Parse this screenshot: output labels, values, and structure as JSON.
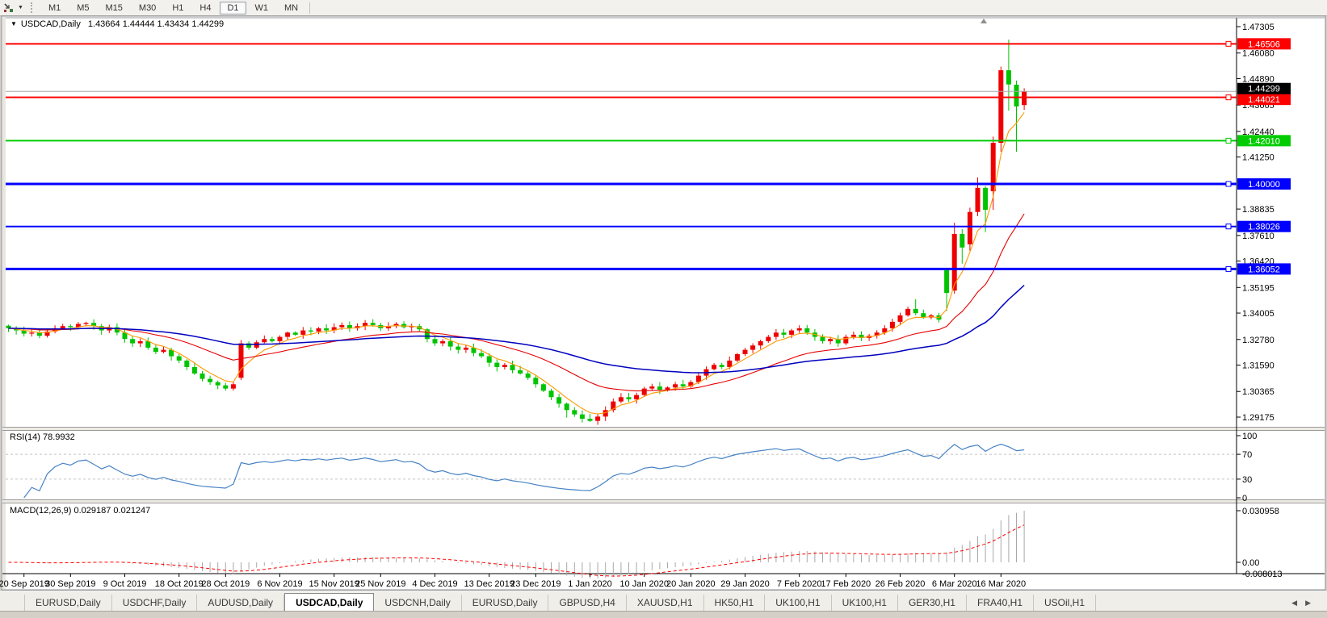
{
  "window": {
    "toolbar": {
      "timeframes": [
        "M1",
        "M5",
        "M15",
        "M30",
        "H1",
        "H4",
        "D1",
        "W1",
        "MN"
      ],
      "active": "D1"
    },
    "tabs": {
      "items": [
        "EURUSD,Daily",
        "USDCHF,Daily",
        "AUDUSD,Daily",
        "USDCAD,Daily",
        "USDCNH,Daily",
        "EURUSD,Daily",
        "GBPUSD,H4",
        "XAUUSD,H1",
        "HK50,H1",
        "UK100,H1",
        "UK100,H1",
        "GER30,H1",
        "FRA40,H1",
        "USOil,H1"
      ],
      "active_index": 3,
      "nav_left": "◀",
      "nav_right": "▶"
    }
  },
  "chart_title": {
    "caret": "▼",
    "symbol": "USDCAD,Daily",
    "ohlc": "1.43664 1.44444 1.43434 1.44299"
  },
  "chart_data": {
    "type": "candlestick",
    "symbol": "USDCAD",
    "timeframe": "Daily",
    "current_bar": {
      "open": 1.43664,
      "high": 1.44444,
      "low": 1.43434,
      "close": 1.44299
    },
    "ylim": [
      1.29175,
      1.47305
    ],
    "y_ticks": [
      "1.47305",
      "1.46080",
      "1.44890",
      "1.43665",
      "1.42440",
      "1.41250",
      "1.38835",
      "1.37610",
      "1.36420",
      "1.35195",
      "1.34005",
      "1.32780",
      "1.31590",
      "1.30365",
      "1.29175"
    ],
    "x_labels": [
      {
        "text": "20 Sep 2019",
        "bar": 2
      },
      {
        "text": "30 Sep 2019",
        "bar": 8
      },
      {
        "text": "9 Oct 2019",
        "bar": 15
      },
      {
        "text": "18 Oct 2019",
        "bar": 22
      },
      {
        "text": "28 Oct 2019",
        "bar": 28
      },
      {
        "text": "6 Nov 2019",
        "bar": 35
      },
      {
        "text": "15 Nov 2019",
        "bar": 42
      },
      {
        "text": "25 Nov 2019",
        "bar": 48
      },
      {
        "text": "4 Dec 2019",
        "bar": 55
      },
      {
        "text": "13 Dec 2019",
        "bar": 62
      },
      {
        "text": "23 Dec 2019",
        "bar": 68
      },
      {
        "text": "1 Jan 2020",
        "bar": 75
      },
      {
        "text": "10 Jan 2020",
        "bar": 82
      },
      {
        "text": "20 Jan 2020",
        "bar": 88
      },
      {
        "text": "29 Jan 2020",
        "bar": 95
      },
      {
        "text": "7 Feb 2020",
        "bar": 102
      },
      {
        "text": "17 Feb 2020",
        "bar": 108
      },
      {
        "text": "26 Feb 2020",
        "bar": 115
      },
      {
        "text": "6 Mar 2020",
        "bar": 122
      },
      {
        "text": "16 Mar 2020",
        "bar": 128
      }
    ],
    "closes": [
      1.333,
      1.332,
      1.3305,
      1.331,
      1.3295,
      1.3315,
      1.333,
      1.334,
      1.3335,
      1.335,
      1.3355,
      1.334,
      1.332,
      1.3335,
      1.331,
      1.328,
      1.326,
      1.327,
      1.324,
      1.322,
      1.323,
      1.32,
      1.318,
      1.315,
      1.312,
      1.3095,
      1.308,
      1.3065,
      1.305,
      1.307,
      1.326,
      1.324,
      1.3265,
      1.328,
      1.327,
      1.329,
      1.331,
      1.33,
      1.332,
      1.3315,
      1.333,
      1.332,
      1.3335,
      1.3345,
      1.333,
      1.334,
      1.3355,
      1.3345,
      1.333,
      1.334,
      1.335,
      1.3335,
      1.334,
      1.3325,
      1.328,
      1.326,
      1.327,
      1.3245,
      1.323,
      1.324,
      1.3215,
      1.32,
      1.317,
      1.315,
      1.316,
      1.3135,
      1.312,
      1.31,
      1.307,
      1.304,
      1.301,
      1.298,
      1.295,
      1.293,
      1.291,
      1.29,
      1.292,
      1.295,
      1.299,
      1.301,
      1.3,
      1.302,
      1.305,
      1.306,
      1.3045,
      1.3055,
      1.307,
      1.306,
      1.308,
      1.311,
      1.314,
      1.316,
      1.315,
      1.318,
      1.321,
      1.323,
      1.325,
      1.327,
      1.329,
      1.331,
      1.33,
      1.332,
      1.333,
      1.331,
      1.329,
      1.327,
      1.328,
      1.326,
      1.329,
      1.33,
      1.3285,
      1.3295,
      1.331,
      1.333,
      1.336,
      1.339,
      1.342,
      1.34,
      1.338,
      1.339,
      1.337,
      1.3494,
      1.3768,
      1.3705,
      1.387,
      1.3982,
      1.388,
      1.4191,
      1.4528,
      1.4462,
      1.436,
      1.44299
    ],
    "key_bars": {
      "30": [
        1.31,
        1.3275,
        1.309,
        1.326
      ],
      "54": [
        1.3325,
        1.333,
        1.3265,
        1.328
      ],
      "72": [
        1.298,
        1.2985,
        1.2915,
        1.295
      ],
      "75": [
        1.291,
        1.2932,
        1.2895,
        1.29
      ],
      "117": [
        1.342,
        1.3465,
        1.339,
        1.34
      ],
      "121": [
        1.3599,
        1.361,
        1.341,
        1.3494
      ],
      "122": [
        1.3505,
        1.382,
        1.349,
        1.3768
      ],
      "123": [
        1.3768,
        1.379,
        1.363,
        1.3705
      ],
      "124": [
        1.372,
        1.389,
        1.369,
        1.387
      ],
      "125": [
        1.387,
        1.403,
        1.385,
        1.3982
      ],
      "126": [
        1.3982,
        1.399,
        1.3776,
        1.388
      ],
      "127": [
        1.3966,
        1.422,
        1.388,
        1.4191
      ],
      "128": [
        1.4191,
        1.4545,
        1.415,
        1.4528
      ],
      "129": [
        1.4528,
        1.467,
        1.434,
        1.4462
      ],
      "130": [
        1.4461,
        1.448,
        1.415,
        1.436
      ],
      "131": [
        1.43664,
        1.44444,
        1.43434,
        1.44299
      ]
    },
    "hlines": [
      {
        "price": 1.46506,
        "label": "1.46506",
        "color": "#FF0000",
        "width": 2
      },
      {
        "price": 1.44021,
        "label": "1.44021",
        "color": "#FF0000",
        "width": 2
      },
      {
        "price": 1.4201,
        "label": "1.42010",
        "color": "#00CC00",
        "width": 2
      },
      {
        "price": 1.4,
        "label": "1.40000",
        "color": "#0000FF",
        "width": 3
      },
      {
        "price": 1.38026,
        "label": "1.38026",
        "color": "#0000FF",
        "width": 2
      },
      {
        "price": 1.36052,
        "label": "1.36052",
        "color": "#0000FF",
        "width": 3
      }
    ],
    "bid_line": {
      "price": 1.44299,
      "label": "1.44299",
      "line_color": "#AAAAAA",
      "badge_color": "#000000"
    },
    "ma_lines": [
      {
        "name": "fast",
        "period": 5,
        "color": "#FF9900"
      },
      {
        "name": "mid",
        "period": 21,
        "color": "#E60000"
      },
      {
        "name": "slow",
        "period": 55,
        "color": "#0000C0"
      }
    ],
    "rsi": {
      "label": "RSI(14) 78.9932",
      "period": 14,
      "value": 78.9932,
      "axis_ticks": [
        "100",
        "70",
        "30",
        "0"
      ],
      "upper_level": 70,
      "lower_level": 30,
      "range": [
        0,
        100
      ],
      "color": "#4682C4"
    },
    "macd": {
      "label": "MACD(12,26,9) 0.029187 0.021247",
      "fast": 12,
      "slow": 26,
      "signal": 9,
      "macd_value": 0.029187,
      "signal_value": 0.021247,
      "axis_max": "0.030958",
      "axis_zero": "0.00",
      "axis_min": "-0.008013",
      "histogram_color": "#A8A8A8",
      "signal_color": "#FF0000"
    },
    "colors": {
      "up": "#EE0000",
      "down": "#00C400",
      "background": "#FFFFFF",
      "frame": "#000000"
    }
  }
}
